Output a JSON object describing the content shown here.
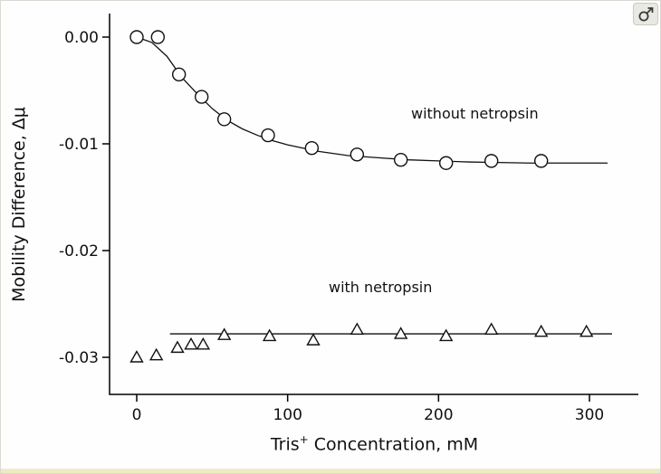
{
  "window": {
    "corner_icon": "zoom-cursor"
  },
  "chart_data": {
    "type": "scatter",
    "title": "",
    "xlabel": {
      "base": "Tris",
      "sup": "+",
      "rest": " Concentration, mM"
    },
    "ylabel": "Mobility Difference, Δμ",
    "xlim": [
      -18,
      332
    ],
    "ylim": [
      -0.0335,
      0.0022
    ],
    "grid": false,
    "legend_position": "inline-annotations",
    "xticks": [
      {
        "label": "0",
        "value": 0
      },
      {
        "label": "100",
        "value": 100
      },
      {
        "label": "200",
        "value": 200
      },
      {
        "label": "300",
        "value": 300
      }
    ],
    "yticks": [
      {
        "label": "0.00",
        "value": 0
      },
      {
        "label": "-0.01",
        "value": -0.01
      },
      {
        "label": "-0.02",
        "value": -0.02
      },
      {
        "label": "-0.03",
        "value": -0.03
      }
    ],
    "series": [
      {
        "name": "without netropsin",
        "marker": "circle",
        "annotation": "without netropsin",
        "points": [
          [
            0,
            0.0
          ],
          [
            14,
            0.0
          ],
          [
            28,
            -0.0035
          ],
          [
            43,
            -0.0056
          ],
          [
            58,
            -0.0077
          ],
          [
            87,
            -0.0092
          ],
          [
            116,
            -0.0104
          ],
          [
            146,
            -0.011
          ],
          [
            175,
            -0.0115
          ],
          [
            205,
            -0.0118
          ],
          [
            235,
            -0.0116
          ],
          [
            268,
            -0.0116
          ]
        ],
        "fit_curve": [
          [
            0,
            0.0
          ],
          [
            10,
            -0.0005
          ],
          [
            20,
            -0.0018
          ],
          [
            30,
            -0.0038
          ],
          [
            40,
            -0.0053
          ],
          [
            50,
            -0.0067
          ],
          [
            60,
            -0.0078
          ],
          [
            70,
            -0.0086
          ],
          [
            80,
            -0.0092
          ],
          [
            90,
            -0.0097
          ],
          [
            100,
            -0.0101
          ],
          [
            120,
            -0.0107
          ],
          [
            140,
            -0.0111
          ],
          [
            160,
            -0.0113
          ],
          [
            180,
            -0.0115
          ],
          [
            200,
            -0.0116
          ],
          [
            220,
            -0.0117
          ],
          [
            240,
            -0.01175
          ],
          [
            260,
            -0.0118
          ],
          [
            280,
            -0.0118
          ],
          [
            300,
            -0.0118
          ],
          [
            312,
            -0.0118
          ]
        ]
      },
      {
        "name": "with netropsin",
        "marker": "triangle",
        "annotation": "with netropsin",
        "points": [
          [
            0,
            -0.03
          ],
          [
            13,
            -0.0298
          ],
          [
            27,
            -0.0291
          ],
          [
            36,
            -0.0288
          ],
          [
            44,
            -0.0288
          ],
          [
            58,
            -0.0279
          ],
          [
            88,
            -0.028
          ],
          [
            117,
            -0.0284
          ],
          [
            146,
            -0.0274
          ],
          [
            175,
            -0.0278
          ],
          [
            205,
            -0.028
          ],
          [
            235,
            -0.0274
          ],
          [
            268,
            -0.0276
          ],
          [
            298,
            -0.0276
          ]
        ],
        "fit_line": {
          "y": -0.0278,
          "x_start": 22,
          "x_end": 315
        }
      }
    ]
  }
}
